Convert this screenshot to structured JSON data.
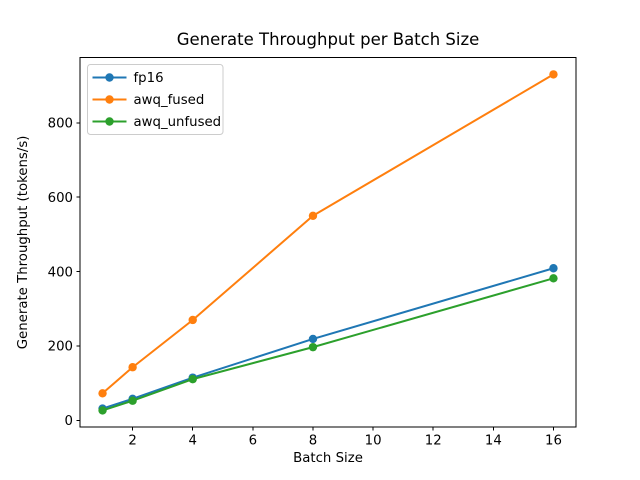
{
  "chart_data": {
    "type": "line",
    "title": "Generate Throughput per Batch Size",
    "xlabel": "Batch Size",
    "ylabel": "Generate Throughput (tokens/s)",
    "x": [
      1,
      2,
      4,
      8,
      16
    ],
    "series": [
      {
        "name": "fp16",
        "color": "#1f77b4",
        "values": [
          32,
          58,
          115,
          219,
          409
        ]
      },
      {
        "name": "awq_fused",
        "color": "#ff7f0e",
        "values": [
          73,
          143,
          270,
          550,
          930
        ]
      },
      {
        "name": "awq_unfused",
        "color": "#2ca02c",
        "values": [
          27,
          53,
          111,
          197,
          382
        ]
      }
    ],
    "xticks": [
      2,
      4,
      6,
      8,
      10,
      12,
      14,
      16
    ],
    "yticks": [
      0,
      200,
      400,
      600,
      800
    ],
    "xlim": [
      0.25,
      16.75
    ],
    "ylim": [
      -18.15,
      975.15
    ],
    "legend_position": "upper left",
    "grid": false,
    "marker": "o",
    "background": "#ffffff",
    "spine_color": "#000000",
    "tick_color": "#000000",
    "legend_border_color": "#cccccc"
  }
}
